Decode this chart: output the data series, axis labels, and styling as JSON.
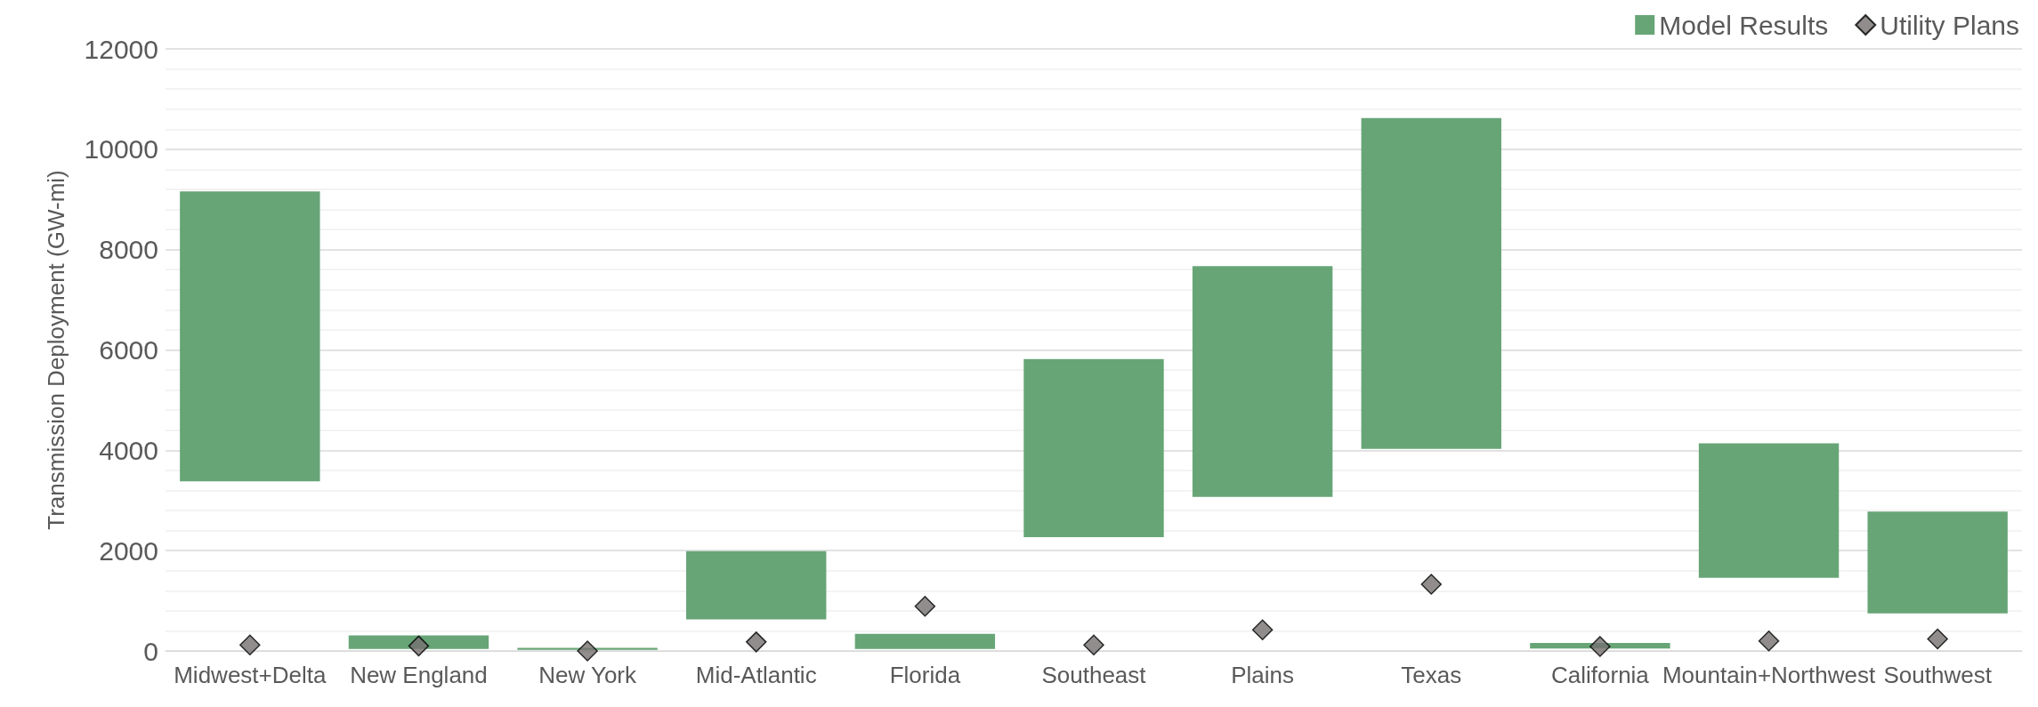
{
  "chart_data": {
    "type": "bar",
    "ylabel": "Transmission Deployment (GW-mi)",
    "categories": [
      "Midwest+Delta",
      "New England",
      "New York",
      "Mid-Atlantic",
      "Florida",
      "Southeast",
      "Plains",
      "Texas",
      "California",
      "Mountain+Northwest",
      "Southwest"
    ],
    "series": [
      {
        "name": "Model Results",
        "color": "#67a577",
        "base": [
          3380,
          40,
          20,
          630,
          40,
          2270,
          3070,
          4030,
          50,
          1460,
          750
        ],
        "values": [
          5780,
          270,
          40,
          1360,
          300,
          3550,
          4600,
          6590,
          110,
          2680,
          2030
        ]
      },
      {
        "name": "Utility Plans",
        "type": "scatter",
        "color": "#767171",
        "x": [
          "Midwest+Delta",
          "New England",
          "New York",
          "Mid-Atlantic",
          "Florida",
          "Southeast",
          "Plains",
          "Texas",
          "California",
          "Mountain+Northwest",
          "Southwest"
        ],
        "values": [
          120,
          100,
          0,
          180,
          890,
          120,
          420,
          1330,
          90,
          200,
          240
        ]
      }
    ],
    "ylim": [
      0,
      12000
    ],
    "yticks": [
      0,
      2000,
      4000,
      6000,
      8000,
      10000,
      12000
    ],
    "grid": "y",
    "legend": "top right",
    "marker": "diamond"
  }
}
